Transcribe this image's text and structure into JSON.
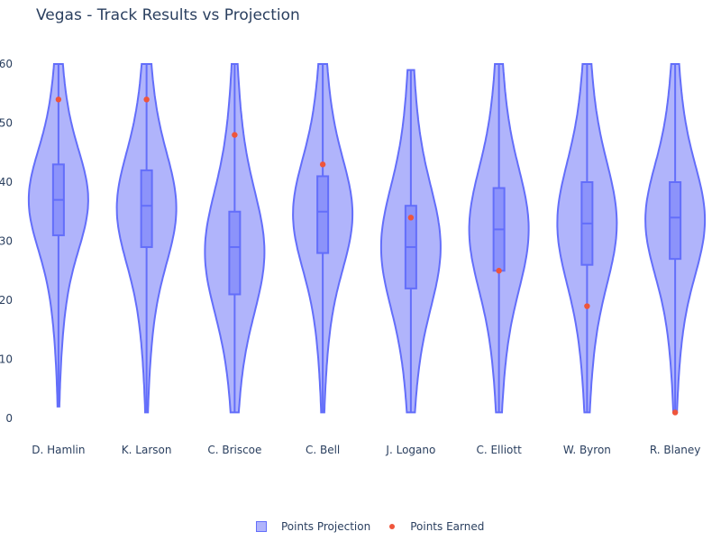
{
  "chart_data": {
    "type": "violin",
    "title": "Vegas - Track Results vs Projection",
    "xlabel": "",
    "ylabel": "",
    "ylim": [
      0,
      60
    ],
    "yticks": [
      0,
      10,
      20,
      30,
      40,
      50,
      60
    ],
    "grid": false,
    "legend_position": "bottom-center",
    "categories": [
      "D. Hamlin",
      "K. Larson",
      "C. Briscoe",
      "C. Bell",
      "J. Logano",
      "C. Elliott",
      "W. Byron",
      "R. Blaney"
    ],
    "series": [
      {
        "name": "Points Projection",
        "type": "violin",
        "color": "#636efa",
        "fill": "#b0b4fb",
        "stats": [
          {
            "min": 2,
            "lower_fence": 13,
            "q1": 31,
            "median": 37,
            "q3": 43,
            "max": 60
          },
          {
            "min": 1,
            "lower_fence": 10,
            "q1": 29,
            "median": 36,
            "q3": 42,
            "max": 60
          },
          {
            "min": 1,
            "lower_fence": 1,
            "q1": 21,
            "median": 29,
            "q3": 35,
            "max": 60
          },
          {
            "min": 1,
            "lower_fence": 9,
            "q1": 28,
            "median": 35,
            "q3": 41,
            "max": 60
          },
          {
            "min": 1,
            "lower_fence": 1,
            "q1": 22,
            "median": 29,
            "q3": 36,
            "max": 59
          },
          {
            "min": 1,
            "lower_fence": 1,
            "q1": 25,
            "median": 32,
            "q3": 39,
            "max": 60
          },
          {
            "min": 1,
            "lower_fence": 1,
            "q1": 26,
            "median": 33,
            "q3": 40,
            "max": 60
          },
          {
            "min": 1,
            "lower_fence": 8,
            "q1": 27,
            "median": 34,
            "q3": 40,
            "max": 60
          }
        ]
      },
      {
        "name": "Points Earned",
        "type": "scatter",
        "color": "#ef553b",
        "values": [
          54,
          54,
          48,
          43,
          34,
          25,
          19,
          1
        ]
      }
    ]
  },
  "legend": {
    "items": [
      "Points Projection",
      "Points Earned"
    ]
  }
}
